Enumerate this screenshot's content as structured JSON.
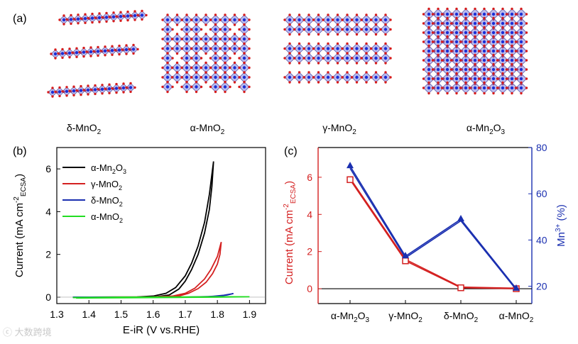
{
  "panel_a": {
    "label": "(a)",
    "structures": [
      {
        "name": "δ-MnO",
        "sub": "2",
        "kind": "layered"
      },
      {
        "name": "α-MnO",
        "sub": "2",
        "kind": "tunnel"
      },
      {
        "name": "γ-MnO",
        "sub": "2",
        "kind": "intergrowth"
      },
      {
        "name": "α-Mn",
        "sub": "2",
        "mid": "O",
        "sub2": "3",
        "kind": "bixbyite"
      }
    ],
    "colors": {
      "octahedron": "#6a6ad8",
      "mn_atom": "#1a2fd6",
      "o_atom": "#d61c1c"
    }
  },
  "watermark": "大数跨境",
  "chart_data": [
    {
      "type": "line",
      "panel_label": "(b)",
      "xlabel": "E-iR (V vs.RHE)",
      "ylabel": "Current (mA cm",
      "ylabel_sup": "-2",
      "ylabel_sub": "ECSA",
      "ylabel_close": ")",
      "xlim": [
        1.3,
        1.95
      ],
      "ylim": [
        -0.3,
        7.0
      ],
      "xticks": [
        1.3,
        1.4,
        1.5,
        1.6,
        1.7,
        1.8,
        1.9
      ],
      "yticks": [
        0,
        2,
        4,
        6
      ],
      "legend": "top-left",
      "series": [
        {
          "name": "α-Mn",
          "sub": "2",
          "mid": "O",
          "sub2": "3",
          "color": "#000000",
          "forward": [
            [
              1.35,
              0.0
            ],
            [
              1.55,
              0.01
            ],
            [
              1.6,
              0.05
            ],
            [
              1.64,
              0.18
            ],
            [
              1.67,
              0.45
            ],
            [
              1.7,
              1.0
            ],
            [
              1.72,
              1.6
            ],
            [
              1.74,
              2.4
            ],
            [
              1.76,
              3.5
            ],
            [
              1.775,
              4.8
            ],
            [
              1.788,
              6.35
            ]
          ],
          "reverse": [
            [
              1.788,
              6.35
            ],
            [
              1.783,
              5.2
            ],
            [
              1.775,
              4.1
            ],
            [
              1.76,
              3.0
            ],
            [
              1.74,
              2.0
            ],
            [
              1.72,
              1.3
            ],
            [
              1.7,
              0.75
            ],
            [
              1.68,
              0.38
            ],
            [
              1.65,
              0.1
            ],
            [
              1.6,
              0.0
            ]
          ]
        },
        {
          "name": "γ-MnO",
          "sub": "2",
          "color": "#d42020",
          "forward": [
            [
              1.35,
              0.0
            ],
            [
              1.6,
              0.01
            ],
            [
              1.66,
              0.05
            ],
            [
              1.7,
              0.18
            ],
            [
              1.73,
              0.42
            ],
            [
              1.76,
              0.85
            ],
            [
              1.78,
              1.3
            ],
            [
              1.8,
              1.9
            ],
            [
              1.812,
              2.58
            ]
          ],
          "reverse": [
            [
              1.812,
              2.58
            ],
            [
              1.808,
              2.0
            ],
            [
              1.8,
              1.55
            ],
            [
              1.785,
              1.1
            ],
            [
              1.765,
              0.7
            ],
            [
              1.74,
              0.4
            ],
            [
              1.71,
              0.18
            ],
            [
              1.68,
              0.05
            ],
            [
              1.64,
              0.0
            ]
          ]
        },
        {
          "name": "δ-MnO",
          "sub": "2",
          "color": "#1a2fb0",
          "forward": [
            [
              1.35,
              0.0
            ],
            [
              1.7,
              0.0
            ],
            [
              1.78,
              0.03
            ],
            [
              1.82,
              0.09
            ],
            [
              1.85,
              0.17
            ]
          ],
          "reverse": [
            [
              1.85,
              0.17
            ],
            [
              1.83,
              0.1
            ],
            [
              1.8,
              0.05
            ],
            [
              1.75,
              0.01
            ],
            [
              1.7,
              0.0
            ]
          ]
        },
        {
          "name": "α-MnO",
          "sub": "2",
          "color": "#22dd22",
          "forward": [
            [
              1.35,
              -0.02
            ],
            [
              1.5,
              0.0
            ],
            [
              1.7,
              0.01
            ],
            [
              1.8,
              0.02
            ],
            [
              1.9,
              0.02
            ]
          ],
          "reverse": [
            [
              1.9,
              0.02
            ],
            [
              1.8,
              0.0
            ],
            [
              1.7,
              -0.01
            ],
            [
              1.5,
              -0.03
            ],
            [
              1.36,
              -0.04
            ]
          ]
        }
      ]
    },
    {
      "type": "line",
      "panel_label": "(c)",
      "categories": [
        {
          "name": "α-Mn",
          "sub": "2",
          "mid": "O",
          "sub2": "3"
        },
        {
          "name": "γ-MnO",
          "sub": "2"
        },
        {
          "name": "δ-MnO",
          "sub": "2"
        },
        {
          "name": "α-MnO",
          "sub": "2"
        }
      ],
      "ylabel_left": "Current (mA cm",
      "ylabel_left_sup": "-2",
      "ylabel_left_sub": "ECSA",
      "ylabel_left_close": ")",
      "ylabel_right": "Mn",
      "ylabel_right_sup": "3+",
      "ylabel_right_close": " (%)",
      "ylim_left": [
        -0.8,
        7.6
      ],
      "ylim_right": [
        12.5,
        80
      ],
      "yticks_left": [
        0,
        2,
        4,
        6
      ],
      "yticks_right": [
        20,
        40,
        60,
        80
      ],
      "series": [
        {
          "axis": "left",
          "color": "#d42020",
          "marker": "square",
          "values": [
            5.87,
            1.5,
            0.05,
            0.0
          ],
          "values_upper": [
            5.95,
            1.58,
            0.09,
            0.03
          ]
        },
        {
          "axis": "right",
          "color": "#1a2fb0",
          "marker": "triangle",
          "values": [
            72,
            33,
            49,
            19
          ],
          "values_lower": [
            71,
            32.3,
            48.3,
            18.5
          ]
        }
      ]
    }
  ]
}
